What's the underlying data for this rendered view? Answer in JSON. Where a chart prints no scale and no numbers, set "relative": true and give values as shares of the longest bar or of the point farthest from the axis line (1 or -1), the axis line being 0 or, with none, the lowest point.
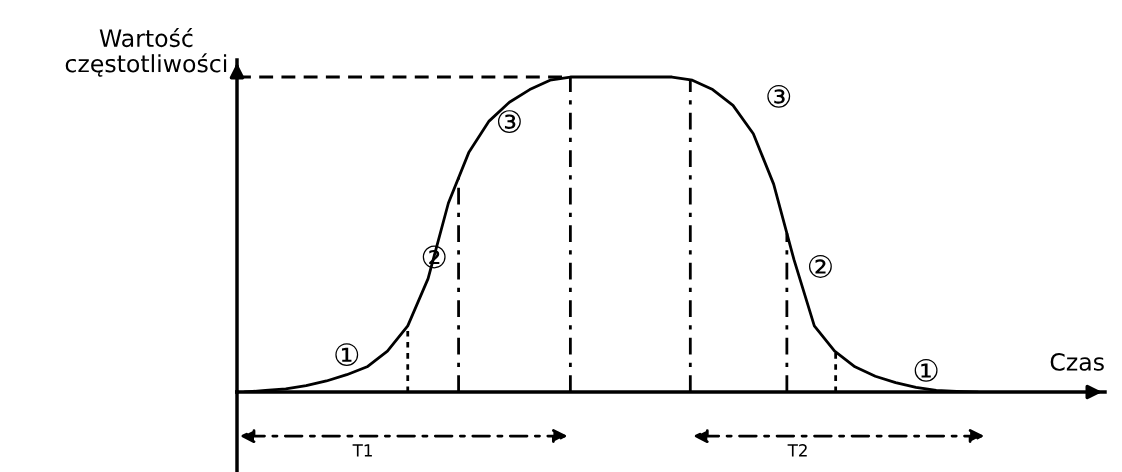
{
  "chart_data": {
    "type": "line",
    "relative": true,
    "ylabel": "Wartość\nczęstotliwości",
    "xlabel": "Czas",
    "color": "#000000",
    "categories": [
      null,
      null,
      null,
      null,
      null,
      null,
      null,
      null,
      null,
      null,
      null,
      null,
      null,
      null,
      null,
      null,
      null,
      null,
      null,
      null,
      null,
      null,
      null,
      null,
      null,
      null,
      null,
      null,
      null,
      null,
      null,
      null,
      null,
      null,
      null,
      null,
      null
    ],
    "values": [
      0,
      0.005,
      0.01,
      0.02,
      0.035,
      0.055,
      0.08,
      0.13,
      0.21,
      0.36,
      0.6,
      0.76,
      0.86,
      0.92,
      0.96,
      0.99,
      1,
      1,
      1,
      1,
      1,
      1,
      0.99,
      0.96,
      0.91,
      0.82,
      0.66,
      0.42,
      0.21,
      0.13,
      0.08,
      0.05,
      0.03,
      0.015,
      0.005,
      0.002,
      0
    ],
    "ref_lines": [
      {
        "axis": "y",
        "value": 1,
        "label": null,
        "line_style": "dashed"
      }
    ],
    "annotations": [
      "①",
      "②",
      "③",
      "③",
      "②",
      "①",
      "T1",
      "T2"
    ]
  }
}
